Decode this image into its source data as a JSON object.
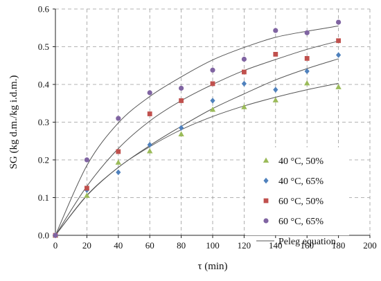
{
  "chart_data": {
    "type": "scatter",
    "xlabel": "τ (min)",
    "ylabel": "SG (kg d.m./kg i.d.m.)",
    "xlim": [
      0,
      200
    ],
    "ylim": [
      0,
      0.6
    ],
    "xticks": [
      0,
      20,
      40,
      60,
      80,
      100,
      120,
      140,
      160,
      180,
      200
    ],
    "yticks": [
      0.0,
      0.1,
      0.2,
      0.3,
      0.4,
      0.5,
      0.6
    ],
    "grid": "dashed",
    "legend_position": "lower-right",
    "series": [
      {
        "name": "40 °C, 50%",
        "marker": "triangle",
        "color": "#9bbb59",
        "x": [
          0,
          20,
          40,
          60,
          80,
          100,
          120,
          140,
          160,
          180
        ],
        "y": [
          0.0,
          0.105,
          0.193,
          0.223,
          0.268,
          0.333,
          0.34,
          0.358,
          0.403,
          0.393
        ]
      },
      {
        "name": "40 °C, 65%",
        "marker": "diamond",
        "color": "#4f81bd",
        "x": [
          0,
          20,
          40,
          60,
          80,
          100,
          120,
          140,
          160,
          180
        ],
        "y": [
          0.0,
          0.12,
          0.167,
          0.24,
          0.285,
          0.357,
          0.402,
          0.386,
          0.435,
          0.478
        ]
      },
      {
        "name": "60 °C, 50%",
        "marker": "square",
        "color": "#c0504d",
        "x": [
          0,
          20,
          40,
          60,
          80,
          100,
          120,
          140,
          160,
          180
        ],
        "y": [
          0.0,
          0.125,
          0.222,
          0.322,
          0.357,
          0.402,
          0.433,
          0.48,
          0.469,
          0.516
        ]
      },
      {
        "name": "60 °C, 65%",
        "marker": "circle",
        "color": "#8064a2",
        "x": [
          0,
          20,
          40,
          60,
          80,
          100,
          120,
          140,
          160,
          180
        ],
        "y": [
          0.0,
          0.2,
          0.31,
          0.378,
          0.39,
          0.438,
          0.467,
          0.543,
          0.537,
          0.565
        ]
      }
    ],
    "fit_lines": {
      "name": "Peleg equation",
      "color": "#555555",
      "curves": [
        {
          "x": [
            0,
            20,
            40,
            60,
            80,
            100,
            120,
            140,
            160,
            180
          ],
          "y": [
            0.0,
            0.105,
            0.18,
            0.235,
            0.28,
            0.315,
            0.343,
            0.366,
            0.386,
            0.403
          ]
        },
        {
          "x": [
            0,
            20,
            40,
            60,
            80,
            100,
            120,
            140,
            160,
            180
          ],
          "y": [
            0.0,
            0.106,
            0.18,
            0.238,
            0.289,
            0.336,
            0.375,
            0.412,
            0.442,
            0.468
          ]
        },
        {
          "x": [
            0,
            20,
            40,
            60,
            80,
            100,
            120,
            140,
            160,
            180
          ],
          "y": [
            0.0,
            0.13,
            0.23,
            0.303,
            0.357,
            0.4,
            0.437,
            0.466,
            0.493,
            0.515
          ]
        },
        {
          "x": [
            0,
            20,
            40,
            60,
            80,
            100,
            120,
            140,
            160,
            180
          ],
          "y": [
            0.0,
            0.185,
            0.298,
            0.368,
            0.42,
            0.465,
            0.498,
            0.525,
            0.541,
            0.555
          ]
        }
      ]
    }
  }
}
